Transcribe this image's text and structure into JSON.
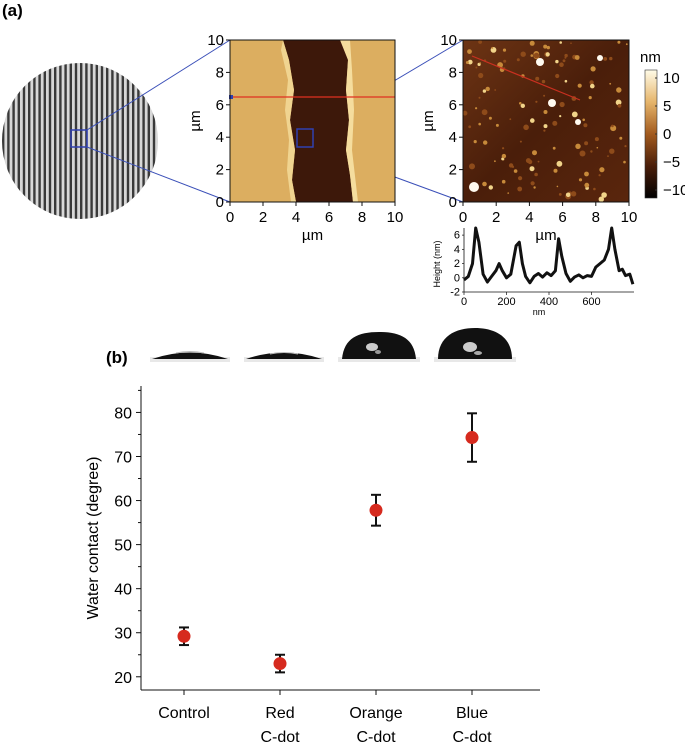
{
  "panel_a": {
    "label": "(a)",
    "afm_large": {
      "x_ticks": [
        "0",
        "2",
        "4",
        "6",
        "8",
        "10"
      ],
      "y_ticks": [
        "0",
        "2",
        "4",
        "6",
        "8",
        "10"
      ],
      "x_unit": "µm",
      "y_unit": "µm"
    },
    "afm_zoom": {
      "x_ticks": [
        "0",
        "2",
        "4",
        "6",
        "8",
        "10"
      ],
      "y_ticks": [
        "0",
        "2",
        "4",
        "6",
        "8",
        "10"
      ],
      "x_unit": "µm",
      "y_unit": "µm"
    },
    "colorbar": {
      "unit": "nm",
      "ticks": [
        "10",
        "5",
        "0",
        "−5",
        "−10"
      ]
    },
    "profile": {
      "ylabel": "Height (nm)",
      "xlabel": "nm",
      "y_ticks": [
        "6",
        "4",
        "2",
        "0",
        "-2"
      ],
      "x_ticks": [
        "0",
        "200",
        "400",
        "600"
      ]
    }
  },
  "panel_b": {
    "label": "(b)"
  },
  "chart_data": [
    {
      "type": "scatter",
      "title": "",
      "xlabel": "",
      "ylabel": "Water contact (degree)",
      "categories": [
        "Control",
        "Red\nC-dot",
        "Orange\nC-dot",
        "Blue\nC-dot"
      ],
      "category_lines": [
        [
          "Control"
        ],
        [
          "Red",
          "C-dot"
        ],
        [
          "Orange",
          "C-dot"
        ],
        [
          "Blue",
          "C-dot"
        ]
      ],
      "series": [
        {
          "values": [
            29.2,
            23.0,
            57.8,
            74.3
          ],
          "errors": [
            2.0,
            2.0,
            3.5,
            5.5
          ]
        }
      ],
      "y_ticks": [
        "20",
        "30",
        "40",
        "50",
        "60",
        "70",
        "80"
      ],
      "ylim": [
        17,
        86
      ],
      "grid": false,
      "colors": {
        "marker": "#d62a1e",
        "error": "#111111"
      }
    },
    {
      "type": "line",
      "title": "",
      "xlabel": "nm",
      "ylabel": "Height (nm)",
      "xlim": [
        0,
        800
      ],
      "ylim": [
        -2,
        7
      ],
      "series": [
        {
          "x": [
            0,
            20,
            40,
            55,
            70,
            90,
            110,
            130,
            150,
            165,
            180,
            200,
            220,
            245,
            260,
            275,
            290,
            310,
            330,
            350,
            370,
            390,
            410,
            430,
            445,
            460,
            480,
            500,
            520,
            540,
            560,
            580,
            600,
            620,
            640,
            660,
            680,
            695,
            710,
            730,
            745,
            760,
            780,
            795
          ],
          "y": [
            -0.3,
            0.2,
            2.0,
            7.0,
            5.0,
            0.5,
            -0.6,
            0.2,
            1.0,
            2.0,
            1.0,
            0.0,
            0.5,
            4.5,
            5.0,
            2.0,
            0.2,
            -0.7,
            0.2,
            0.6,
            0.1,
            0.7,
            0.3,
            1.0,
            5.5,
            3.0,
            0.6,
            -0.5,
            0.1,
            0.4,
            0.0,
            0.3,
            0.2,
            1.5,
            2.0,
            2.5,
            4.0,
            7.0,
            4.0,
            1.0,
            1.2,
            0.3,
            0.5,
            -0.9
          ]
        }
      ],
      "colors": {
        "line": "#111111"
      }
    }
  ]
}
